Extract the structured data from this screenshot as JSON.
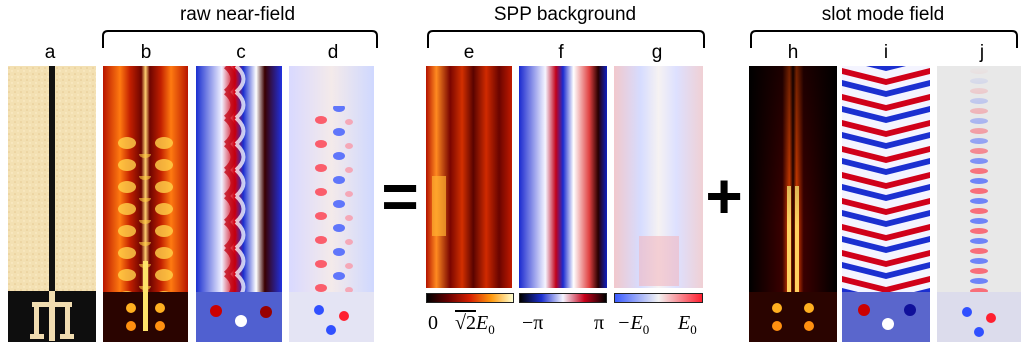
{
  "groups": {
    "raw": "raw near-field",
    "spp": "SPP background",
    "slot": "slot mode field"
  },
  "panels": [
    "a",
    "b",
    "c",
    "d",
    "e",
    "f",
    "g",
    "h",
    "i",
    "j"
  ],
  "operators": {
    "equals": "=",
    "plus": "+"
  },
  "colorbars": {
    "amplitude": {
      "min": "0",
      "max_prefix": "√2",
      "max_symbol": "E",
      "max_sub": "0"
    },
    "phase": {
      "min": "−π",
      "max": "π"
    },
    "field": {
      "min_symbol": "−E",
      "min_sub": "0",
      "max_symbol": "E",
      "max_sub": "0"
    }
  },
  "colors": {
    "amp_low": "#000000",
    "amp_mid1": "#6a0000",
    "amp_mid2": "#d62000",
    "amp_mid3": "#ff9a10",
    "amp_high": "#ffffd0",
    "phase_blue": "#1b2fd0",
    "phase_white": "#f4f4ff",
    "phase_red": "#c8001a",
    "field_blue": "#3a5bff",
    "field_white": "#f2f2f2",
    "field_red": "#ff2030",
    "sample_beige": "#f2dfb0",
    "sample_slot": "#111111"
  }
}
